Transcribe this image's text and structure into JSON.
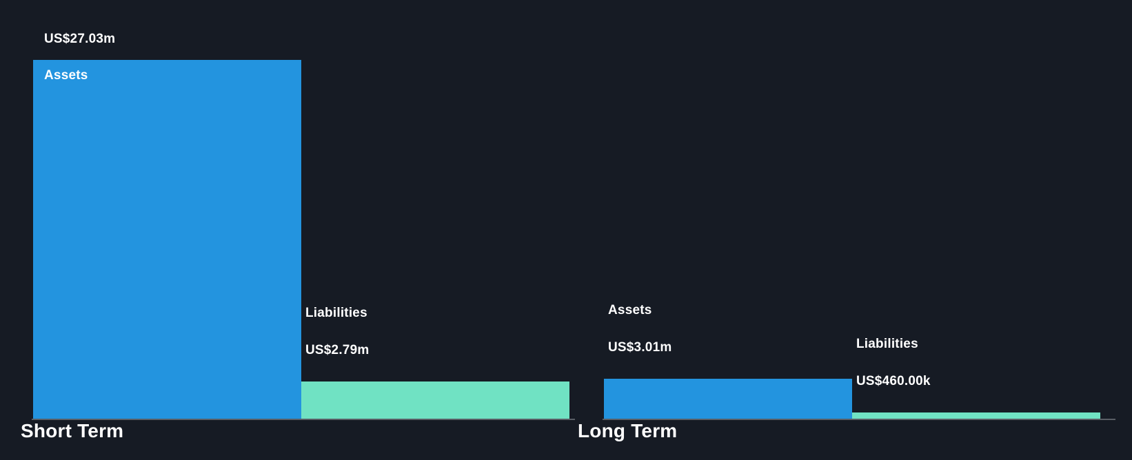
{
  "chart_data": {
    "type": "bar",
    "values_unit": "millions",
    "ylim": [
      0,
      27.03
    ],
    "grid": false,
    "legend_position": "none",
    "background_color": "#161B24",
    "axis_line_color": "#5A5F66",
    "text_color": "#FFFFFF",
    "groups": [
      {
        "title": "Short Term",
        "bars": [
          {
            "name": "Assets",
            "value": 27.03,
            "value_label": "US$27.03m",
            "color": "#2394DF",
            "label_layout": "name-inside"
          },
          {
            "name": "Liabilities",
            "value": 2.79,
            "value_label": "US$2.79m",
            "color": "#70E2C3",
            "label_layout": "stacked-above"
          }
        ]
      },
      {
        "title": "Long Term",
        "bars": [
          {
            "name": "Assets",
            "value": 3.01,
            "value_label": "US$3.01m",
            "color": "#2394DF",
            "label_layout": "stacked-above"
          },
          {
            "name": "Liabilities",
            "value": 0.46,
            "value_label": "US$460.00k",
            "color": "#70E2C3",
            "label_layout": "stacked-above"
          }
        ]
      }
    ]
  }
}
